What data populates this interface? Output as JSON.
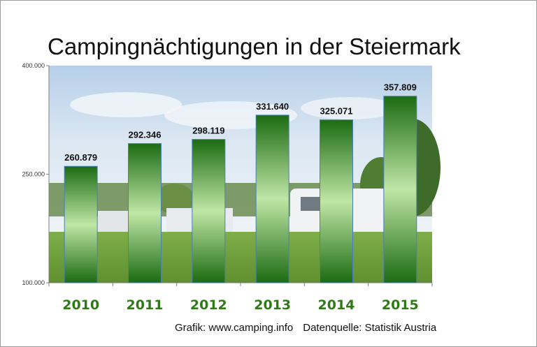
{
  "header": {
    "title": "Campingnächtigungen in der Steiermark"
  },
  "footer": {
    "credit": "Grafik: www.camping.info",
    "source": "Datenquelle: Statistik Austria"
  },
  "colors": {
    "bar_dark": "#1c6b12",
    "bar_light": "#bfe6a6",
    "category_label": "#2f7a17",
    "frame": "#9a9a9a"
  },
  "chart_data": {
    "type": "bar",
    "title": "Campingnächtigungen in der Steiermark",
    "categories": [
      "2010",
      "2011",
      "2012",
      "2013",
      "2014",
      "2015"
    ],
    "values": [
      260879,
      292346,
      298119,
      331640,
      325071,
      357809
    ],
    "value_labels": [
      "260.879",
      "292.346",
      "298.119",
      "331.640",
      "325.071",
      "357.809"
    ],
    "ylim": [
      100000,
      400000
    ],
    "yticks": [
      100000,
      250000,
      400000
    ],
    "ytick_labels": [
      "100.000",
      "250.000",
      "400.000"
    ],
    "xlabel": "",
    "ylabel": "",
    "grid": false,
    "legend": "none",
    "background": "photo of a campsite with caravans under a blue sky"
  }
}
